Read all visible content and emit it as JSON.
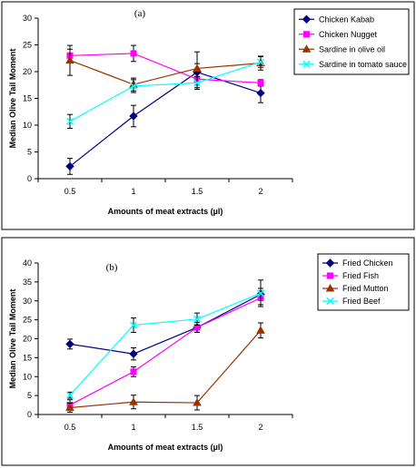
{
  "chart_data": [
    {
      "type": "line",
      "panel_label": "(a)",
      "xlabel": "Amounts  of meat extracts (µl)",
      "ylabel": "Median Olive Tail Moment",
      "categories": [
        "0.5",
        "1",
        "1.5",
        "2"
      ],
      "ylim": [
        0,
        30
      ],
      "yticks": [
        0,
        5,
        10,
        15,
        20,
        25,
        30
      ],
      "grid": false,
      "legend": "right",
      "series": [
        {
          "name": "Chicken Kabab",
          "color": "#000080",
          "marker": "diamond",
          "values": [
            2.3,
            11.7,
            19.9,
            16.0
          ],
          "errors": [
            1.5,
            2.0,
            1.6,
            1.8
          ]
        },
        {
          "name": "Chicken Nugget",
          "color": "#ff00ff",
          "marker": "square",
          "values": [
            23.0,
            23.4,
            18.6,
            17.9
          ],
          "errors": [
            1.2,
            1.5,
            1.6,
            0.6
          ]
        },
        {
          "name": "Sardine in olive oil",
          "color": "#993300",
          "marker": "triangle",
          "values": [
            22.1,
            17.6,
            20.6,
            21.6
          ],
          "errors": [
            2.8,
            1.2,
            3.1,
            1.3
          ]
        },
        {
          "name": "Sardine in tomato sauce",
          "color": "#00ffff",
          "marker": "x",
          "values": [
            10.7,
            17.3,
            17.9,
            21.8
          ],
          "errors": [
            1.3,
            1.2,
            1.2,
            1.0
          ]
        }
      ]
    },
    {
      "type": "line",
      "panel_label": "(b)",
      "xlabel": "Amounts of meat extracts (µl)",
      "ylabel": "Median Olive Tail Moment",
      "categories": [
        "0.5",
        "1",
        "1.5",
        "2"
      ],
      "ylim": [
        0,
        40
      ],
      "yticks": [
        0,
        5,
        10,
        15,
        20,
        25,
        30,
        35,
        40
      ],
      "grid": false,
      "legend": "right",
      "series": [
        {
          "name": "Fried Chicken",
          "color": "#000080",
          "marker": "diamond",
          "values": [
            18.6,
            16.0,
            23.0,
            31.7
          ],
          "errors": [
            1.3,
            1.6,
            1.3,
            1.6
          ]
        },
        {
          "name": "Fried Fish",
          "color": "#ff00ff",
          "marker": "square",
          "values": [
            2.5,
            11.3,
            23.0,
            30.8
          ],
          "errors": [
            1.4,
            1.3,
            1.3,
            1.8
          ]
        },
        {
          "name": "Fried Mutton",
          "color": "#993300",
          "marker": "triangle",
          "values": [
            1.8,
            3.3,
            3.1,
            22.2
          ],
          "errors": [
            1.2,
            1.8,
            1.9,
            2.0
          ]
        },
        {
          "name": "Fried Beef",
          "color": "#00ffff",
          "marker": "x",
          "values": [
            5.1,
            23.6,
            25.2,
            32.0
          ],
          "errors": [
            0.8,
            1.9,
            1.6,
            3.5
          ]
        }
      ]
    }
  ]
}
